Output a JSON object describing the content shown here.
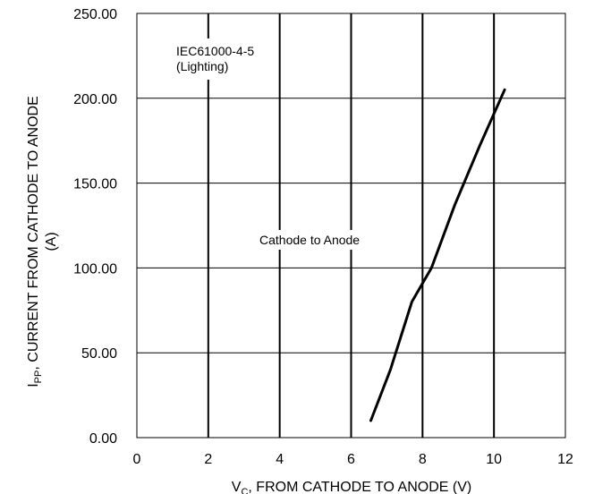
{
  "chart_data": {
    "type": "line",
    "xlim": [
      0,
      12
    ],
    "ylim": [
      0,
      250
    ],
    "x_ticks": [
      "0",
      "2",
      "4",
      "6",
      "8",
      "10",
      "12"
    ],
    "y_ticks": [
      "0.00",
      "50.00",
      "100.00",
      "150.00",
      "200.00",
      "250.00"
    ],
    "xlabel": {
      "main": "V",
      "sub": "C",
      "rest": ", FROM CATHODE TO ANODE (V)"
    },
    "ylabel": {
      "main": "I",
      "sub": "PP",
      "rest": ", CURRENT FROM CATHODE TO ANODE",
      "line2": "(A)"
    },
    "grid": {
      "vertical": true,
      "horizontal": true
    },
    "annotations": {
      "standard_line1": "IEC61000-4-5",
      "standard_line2": "(Lighting)",
      "curve_label": "Cathode to Anode"
    },
    "series": [
      {
        "x": [
          6.55,
          7.1,
          7.7,
          8.25,
          8.9,
          9.6,
          10.3
        ],
        "y": [
          10,
          40,
          80,
          100,
          137,
          172,
          205
        ]
      }
    ]
  }
}
